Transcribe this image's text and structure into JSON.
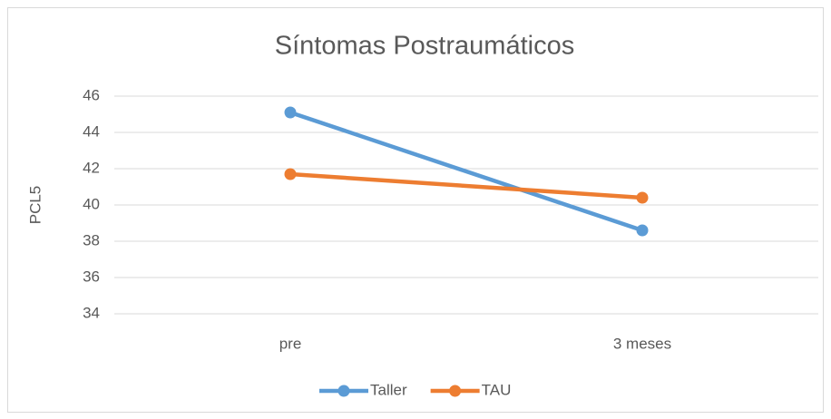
{
  "chart_data": {
    "type": "line",
    "title": "Síntomas Postraumáticos",
    "y_label": "PCL5",
    "categories": [
      "pre",
      "3 meses"
    ],
    "series": [
      {
        "name": "Taller",
        "color": "#5b9bd5",
        "values": [
          45.1,
          38.6
        ]
      },
      {
        "name": "TAU",
        "color": "#ed7d31",
        "values": [
          41.7,
          40.4
        ]
      }
    ],
    "ylim": [
      34,
      46
    ],
    "yticks": [
      34,
      36,
      38,
      40,
      42,
      44,
      46
    ],
    "grid": true,
    "legend": "bottom"
  }
}
